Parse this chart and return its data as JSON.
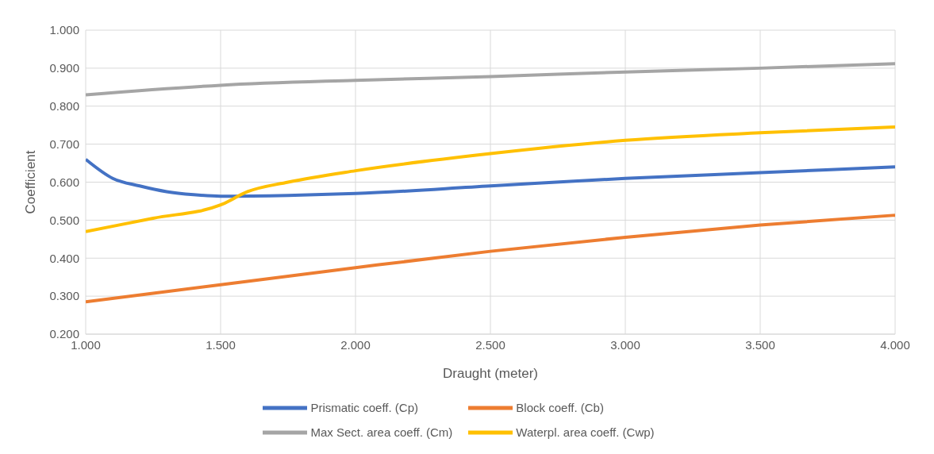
{
  "chart_data": {
    "type": "line",
    "xlabel": "Draught (meter)",
    "ylabel": "Coefficient",
    "xlim": [
      1,
      4
    ],
    "xticks": [
      {
        "value": 1,
        "label": "1.000"
      },
      {
        "value": 1.5,
        "label": "1.500"
      },
      {
        "value": 2,
        "label": "2.000"
      },
      {
        "value": 2.5,
        "label": "2.500"
      },
      {
        "value": 3,
        "label": "3.000"
      },
      {
        "value": 3.5,
        "label": "3.500"
      },
      {
        "value": 4,
        "label": "4.000"
      }
    ],
    "ylim": [
      0.2,
      1
    ],
    "yticks": [
      {
        "value": 0.2,
        "label": "0.200"
      },
      {
        "value": 0.3,
        "label": "0.300"
      },
      {
        "value": 0.4,
        "label": "0.400"
      },
      {
        "value": 0.5,
        "label": "0.500"
      },
      {
        "value": 0.6,
        "label": "0.600"
      },
      {
        "value": 0.7,
        "label": "0.700"
      },
      {
        "value": 0.8,
        "label": "0.800"
      },
      {
        "value": 0.9,
        "label": "0.900"
      },
      {
        "value": 1,
        "label": "1.000"
      }
    ],
    "grid": true,
    "legend": "bottom",
    "marker": "none",
    "line_style": "solid",
    "series": [
      {
        "name": "Prismatic coeff. (Cp)",
        "color": "#4472c4",
        "x": [
          1,
          1.1,
          1.2,
          1.3,
          1.4,
          1.5,
          1.75,
          2,
          2.5,
          3,
          3.5,
          4
        ],
        "values": [
          0.66,
          0.61,
          0.59,
          0.575,
          0.567,
          0.563,
          0.565,
          0.57,
          0.59,
          0.61,
          0.625,
          0.64
        ]
      },
      {
        "name": "Block coeff. (Cb)",
        "color": "#ed7d31",
        "x": [
          1,
          1.5,
          2,
          2.5,
          3,
          3.5,
          4
        ],
        "values": [
          0.285,
          0.33,
          0.375,
          0.418,
          0.455,
          0.487,
          0.513
        ]
      },
      {
        "name": "Max Sect. area coeff. (Cm)",
        "color": "#a5a5a5",
        "x": [
          1,
          1.5,
          2,
          2.5,
          3,
          3.5,
          4
        ],
        "values": [
          0.83,
          0.855,
          0.868,
          0.878,
          0.89,
          0.9,
          0.912
        ]
      },
      {
        "name": "Waterpl. area coeff. (Cwp)",
        "color": "#ffc000",
        "x": [
          1,
          1.25,
          1.5,
          1.6,
          1.75,
          2,
          2.5,
          3,
          3.5,
          4
        ],
        "values": [
          0.47,
          0.505,
          0.54,
          0.575,
          0.6,
          0.63,
          0.675,
          0.71,
          0.73,
          0.745
        ]
      }
    ]
  }
}
